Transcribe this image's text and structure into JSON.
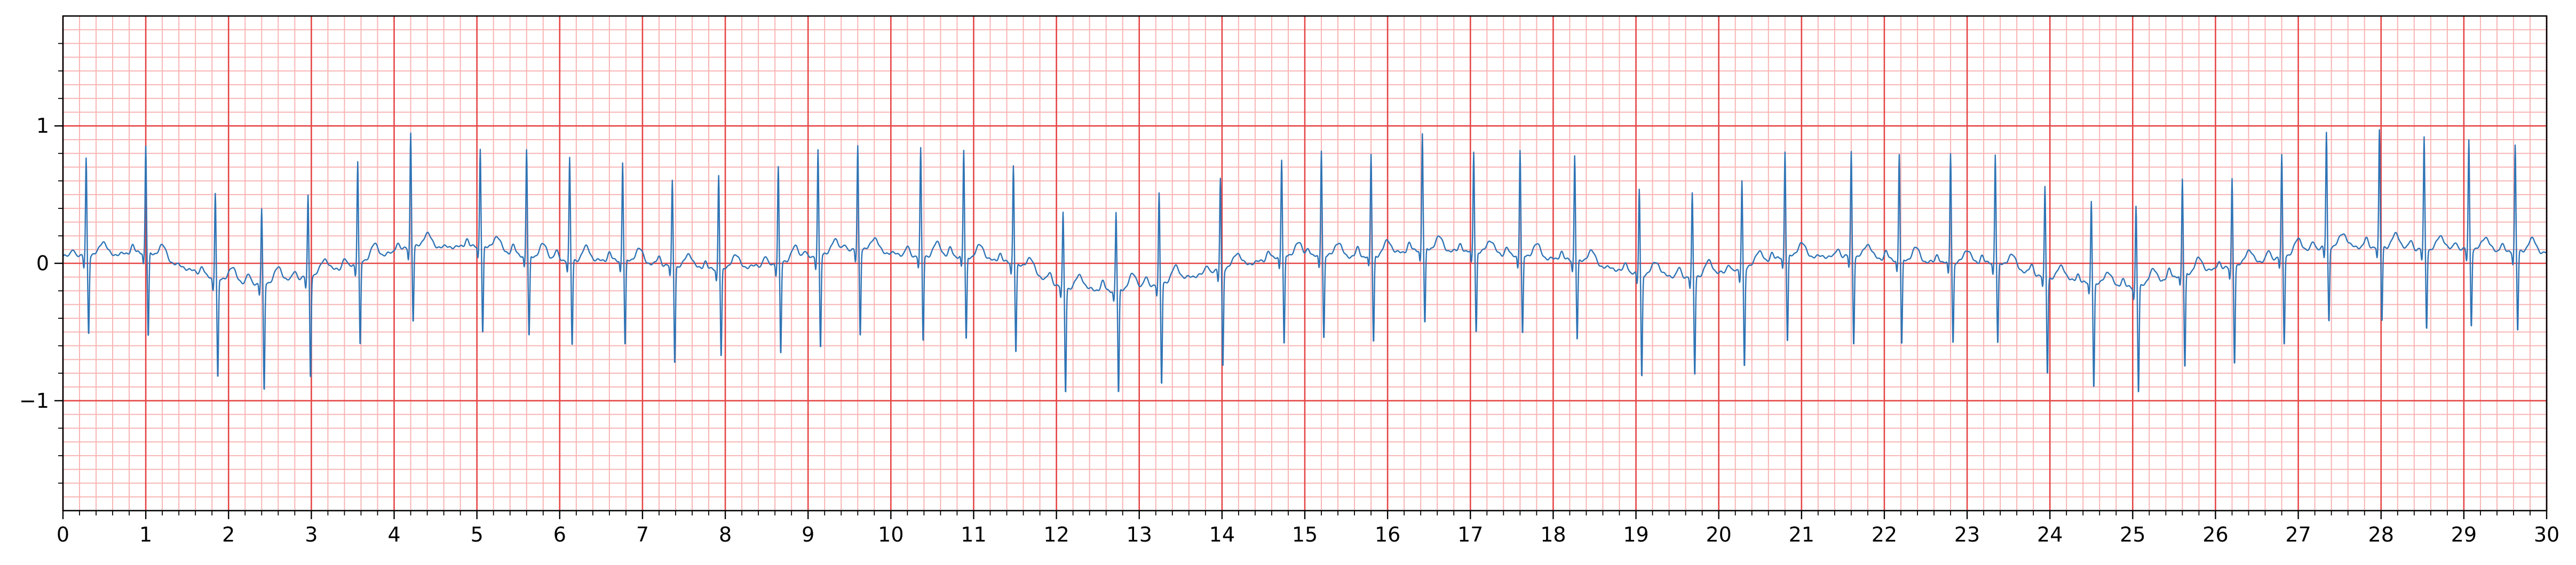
{
  "chart_data": {
    "type": "line",
    "title": "",
    "xlabel": "",
    "ylabel": "",
    "xlim": [
      0,
      30
    ],
    "ylim": [
      -1.8,
      1.8
    ],
    "x_ticks": [
      0,
      1,
      2,
      3,
      4,
      5,
      6,
      7,
      8,
      9,
      10,
      11,
      12,
      13,
      14,
      15,
      16,
      17,
      18,
      19,
      20,
      21,
      22,
      23,
      24,
      25,
      26,
      27,
      28,
      29,
      30
    ],
    "x_tick_labels": [
      "0",
      "1",
      "2",
      "3",
      "4",
      "5",
      "6",
      "7",
      "8",
      "9",
      "10",
      "11",
      "12",
      "13",
      "14",
      "15",
      "16",
      "17",
      "18",
      "19",
      "20",
      "21",
      "22",
      "23",
      "24",
      "25",
      "26",
      "27",
      "28",
      "29",
      "30"
    ],
    "x_minor_step": 0.2,
    "y_ticks": [
      -1,
      0,
      1
    ],
    "y_tick_labels": [
      "−1",
      "0",
      "1"
    ],
    "y_minor_step": 0.2,
    "grid": {
      "major": true,
      "minor": true,
      "major_color": "#e64545",
      "minor_color": "#f8b4b4",
      "major_x_step": 1,
      "major_y_step": 1,
      "minor_x_step": 0.2,
      "minor_y_step": 0.1
    },
    "line_color": "#2f74b5",
    "series": [
      {
        "name": "",
        "sample_rate_hz": 250,
        "beats": [
          {
            "t": 0.28,
            "r": 0.72,
            "s": -0.57,
            "base": 0.05
          },
          {
            "t": 1.0,
            "r": 0.78,
            "s": -0.62,
            "base": 0.08
          },
          {
            "t": 1.84,
            "r": 0.64,
            "s": -0.73,
            "base": -0.12
          },
          {
            "t": 2.4,
            "r": 0.54,
            "s": -0.8,
            "base": -0.15
          },
          {
            "t": 2.96,
            "r": 0.59,
            "s": -0.74,
            "base": -0.1
          },
          {
            "t": 3.56,
            "r": 0.74,
            "s": -0.62,
            "base": 0.0
          },
          {
            "t": 4.2,
            "r": 0.83,
            "s": -0.55,
            "base": 0.12
          },
          {
            "t": 5.04,
            "r": 0.72,
            "s": -0.63,
            "base": 0.12
          },
          {
            "t": 5.6,
            "r": 0.78,
            "s": -0.6,
            "base": 0.05
          },
          {
            "t": 6.12,
            "r": 0.74,
            "s": -0.63,
            "base": 0.02
          },
          {
            "t": 6.76,
            "r": 0.72,
            "s": -0.63,
            "base": 0.02
          },
          {
            "t": 7.36,
            "r": 0.62,
            "s": -0.71,
            "base": -0.02
          },
          {
            "t": 7.92,
            "r": 0.7,
            "s": -0.64,
            "base": -0.05
          },
          {
            "t": 8.64,
            "r": 0.7,
            "s": -0.68,
            "base": 0.0
          },
          {
            "t": 9.12,
            "r": 0.78,
            "s": -0.68,
            "base": 0.05
          },
          {
            "t": 9.6,
            "r": 0.76,
            "s": -0.63,
            "base": 0.1
          },
          {
            "t": 10.36,
            "r": 0.78,
            "s": -0.63,
            "base": 0.05
          },
          {
            "t": 10.88,
            "r": 0.77,
            "s": -0.62,
            "base": 0.05
          },
          {
            "t": 11.48,
            "r": 0.72,
            "s": -0.65,
            "base": 0.0
          },
          {
            "t": 12.08,
            "r": 0.54,
            "s": -0.77,
            "base": -0.18
          },
          {
            "t": 12.72,
            "r": 0.57,
            "s": -0.77,
            "base": -0.2
          },
          {
            "t": 13.24,
            "r": 0.65,
            "s": -0.75,
            "base": -0.15
          },
          {
            "t": 13.98,
            "r": 0.67,
            "s": -0.71,
            "base": -0.05
          },
          {
            "t": 14.72,
            "r": 0.71,
            "s": -0.66,
            "base": 0.05
          },
          {
            "t": 15.2,
            "r": 0.78,
            "s": -0.61,
            "base": 0.05
          },
          {
            "t": 15.8,
            "r": 0.74,
            "s": -0.64,
            "base": 0.05
          },
          {
            "t": 16.42,
            "r": 0.85,
            "s": -0.55,
            "base": 0.1
          },
          {
            "t": 17.04,
            "r": 0.74,
            "s": -0.59,
            "base": 0.08
          },
          {
            "t": 17.6,
            "r": 0.78,
            "s": -0.58,
            "base": 0.05
          },
          {
            "t": 18.26,
            "r": 0.77,
            "s": -0.58,
            "base": 0.02
          },
          {
            "t": 19.04,
            "r": 0.62,
            "s": -0.76,
            "base": -0.08
          },
          {
            "t": 19.68,
            "r": 0.6,
            "s": -0.73,
            "base": -0.1
          },
          {
            "t": 20.28,
            "r": 0.66,
            "s": -0.72,
            "base": -0.05
          },
          {
            "t": 20.8,
            "r": 0.77,
            "s": -0.63,
            "base": 0.05
          },
          {
            "t": 21.6,
            "r": 0.76,
            "s": -0.64,
            "base": 0.05
          },
          {
            "t": 22.18,
            "r": 0.78,
            "s": -0.63,
            "base": 0.02
          },
          {
            "t": 22.8,
            "r": 0.81,
            "s": -0.59,
            "base": 0.0
          },
          {
            "t": 23.34,
            "r": 0.8,
            "s": -0.59,
            "base": 0.0
          },
          {
            "t": 23.94,
            "r": 0.65,
            "s": -0.71,
            "base": -0.1
          },
          {
            "t": 24.5,
            "r": 0.61,
            "s": -0.76,
            "base": -0.15
          },
          {
            "t": 25.04,
            "r": 0.6,
            "s": -0.78,
            "base": -0.18
          },
          {
            "t": 25.6,
            "r": 0.69,
            "s": -0.7,
            "base": -0.08
          },
          {
            "t": 26.2,
            "r": 0.65,
            "s": -0.71,
            "base": -0.03
          },
          {
            "t": 26.8,
            "r": 0.73,
            "s": -0.66,
            "base": 0.05
          },
          {
            "t": 27.34,
            "r": 0.83,
            "s": -0.55,
            "base": 0.12
          },
          {
            "t": 27.98,
            "r": 0.84,
            "s": -0.55,
            "base": 0.12
          },
          {
            "t": 28.52,
            "r": 0.81,
            "s": -0.58,
            "base": 0.1
          },
          {
            "t": 29.06,
            "r": 0.8,
            "s": -0.56,
            "base": 0.1
          },
          {
            "t": 29.62,
            "r": 0.78,
            "s": -0.58,
            "base": 0.08
          }
        ]
      }
    ]
  }
}
